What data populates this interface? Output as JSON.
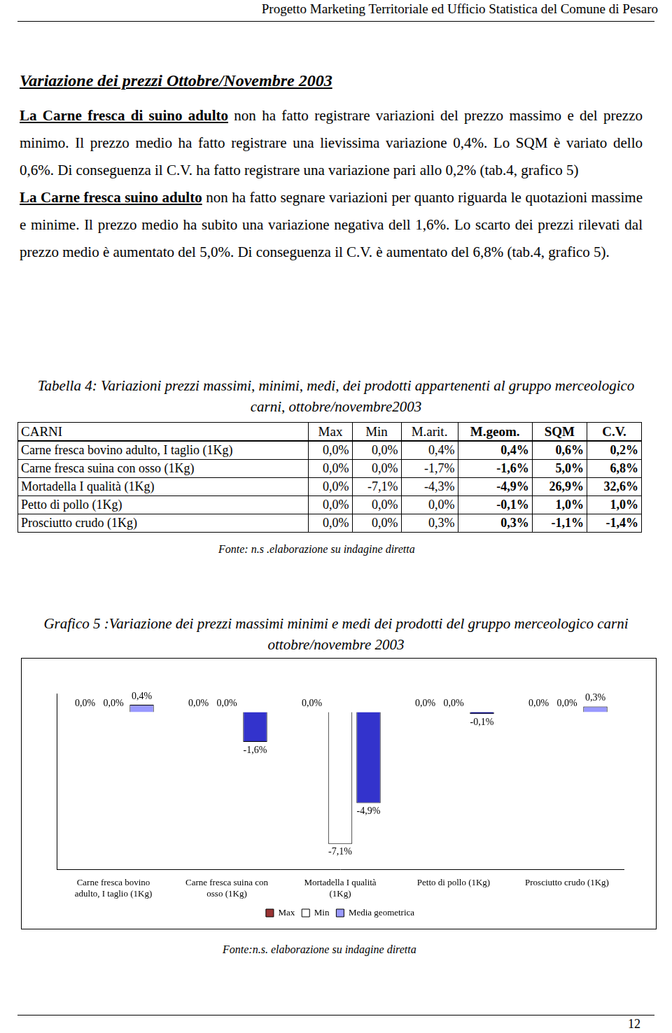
{
  "header": "Progetto Marketing Territoriale ed Ufficio Statistica del Comune di Pesaro",
  "heading": "Variazione dei prezzi Ottobre/Novembre 2003",
  "paragraphs": [
    {
      "underlined": "La Carne fresca di suino adulto",
      "text": " non ha fatto registrare variazioni del prezzo massimo e del prezzo minimo. Il prezzo medio ha fatto registrare una lievissima variazione 0,4%. Lo SQM è variato dello 0,6%. Di conseguenza il C.V. ha fatto registrare una variazione pari allo 0,2% (tab.4, grafico 5)"
    },
    {
      "underlined": "La Carne fresca suino adulto",
      "text": " non ha fatto segnare variazioni per quanto riguarda le quotazioni massime e minime. Il prezzo medio ha subito una variazione negativa dell 1,6%. Lo scarto dei prezzi rilevati dal prezzo medio è aumentato del 5,0%. Di conseguenza il C.V. è aumentato del 6,8% (tab.4, grafico 5)."
    }
  ],
  "table": {
    "caption": "Tabella 4: Variazioni prezzi massimi, minimi, medi, dei prodotti appartenenti al gruppo merceologico carni, ottobre/novembre2003",
    "header": [
      "CARNI",
      "Max",
      "Min",
      "M.arit.",
      "M.geom.",
      "SQM",
      "C.V."
    ],
    "rows": [
      [
        "Carne fresca bovino adulto, I taglio (1Kg)",
        "0,0%",
        "0,0%",
        "0,4%",
        "0,4%",
        "0,6%",
        "0,2%"
      ],
      [
        "Carne fresca suina con osso (1Kg)",
        "0,0%",
        "0,0%",
        "-1,7%",
        "-1,6%",
        "5,0%",
        "6,8%"
      ],
      [
        "Mortadella I qualità (1Kg)",
        "0,0%",
        "-7,1%",
        "-4,3%",
        "-4,9%",
        "26,9%",
        "32,6%"
      ],
      [
        "Petto di pollo (1Kg)",
        "0,0%",
        "0,0%",
        "0,0%",
        "-0,1%",
        "1,0%",
        "1,0%"
      ],
      [
        "Prosciutto crudo (1Kg)",
        "0,0%",
        "0,0%",
        "0,3%",
        "0,3%",
        "-1,1%",
        "-1,4%"
      ]
    ],
    "source": "Fonte: n.s .elaborazione su indagine diretta"
  },
  "chart_title": "Grafico 5 :Variazione dei prezzi massimi minimi e medi dei prodotti del gruppo merceologico carni ottobre/novembre 2003",
  "chart_data": {
    "type": "bar",
    "categories": [
      "Carne fresca bovino adulto, I taglio (1Kg)",
      "Carne fresca suina con osso (1Kg)",
      "Mortadella I qualità (1Kg)",
      "Petto di pollo (1Kg)",
      "Prosciutto crudo (1Kg)"
    ],
    "series": [
      {
        "name": "Max",
        "color": "#993333",
        "values": [
          0,
          0,
          0,
          0,
          0
        ],
        "value_labels": [
          "0,0%",
          "0,0%",
          "0,0%",
          "0,0%",
          "0,0%"
        ]
      },
      {
        "name": "Min",
        "color": "#ffffff",
        "values": [
          0,
          0,
          -7.1,
          0,
          0
        ],
        "value_labels": [
          "0,0%",
          "0,0%",
          "-7,1%",
          "0,0%",
          "0,0%"
        ]
      },
      {
        "name": "Media geometrica",
        "color": "#9999ff",
        "colors": [
          "#9999ff",
          "#3333cc",
          "#3333cc",
          "#000080",
          "#9999ff"
        ],
        "values": [
          0.4,
          -1.6,
          -4.9,
          -0.1,
          0.3
        ],
        "value_labels": [
          "0,4%",
          "-1,6%",
          "-4,9%",
          "-0,1%",
          "0,3%"
        ]
      }
    ],
    "ylim": [
      -8.5,
      1
    ],
    "grid": false,
    "legend": "bottom",
    "data_labels": true,
    "tick_labels": "x"
  },
  "chart_source": "Fonte:n.s. elaborazione su indagine diretta",
  "page_number": 12
}
